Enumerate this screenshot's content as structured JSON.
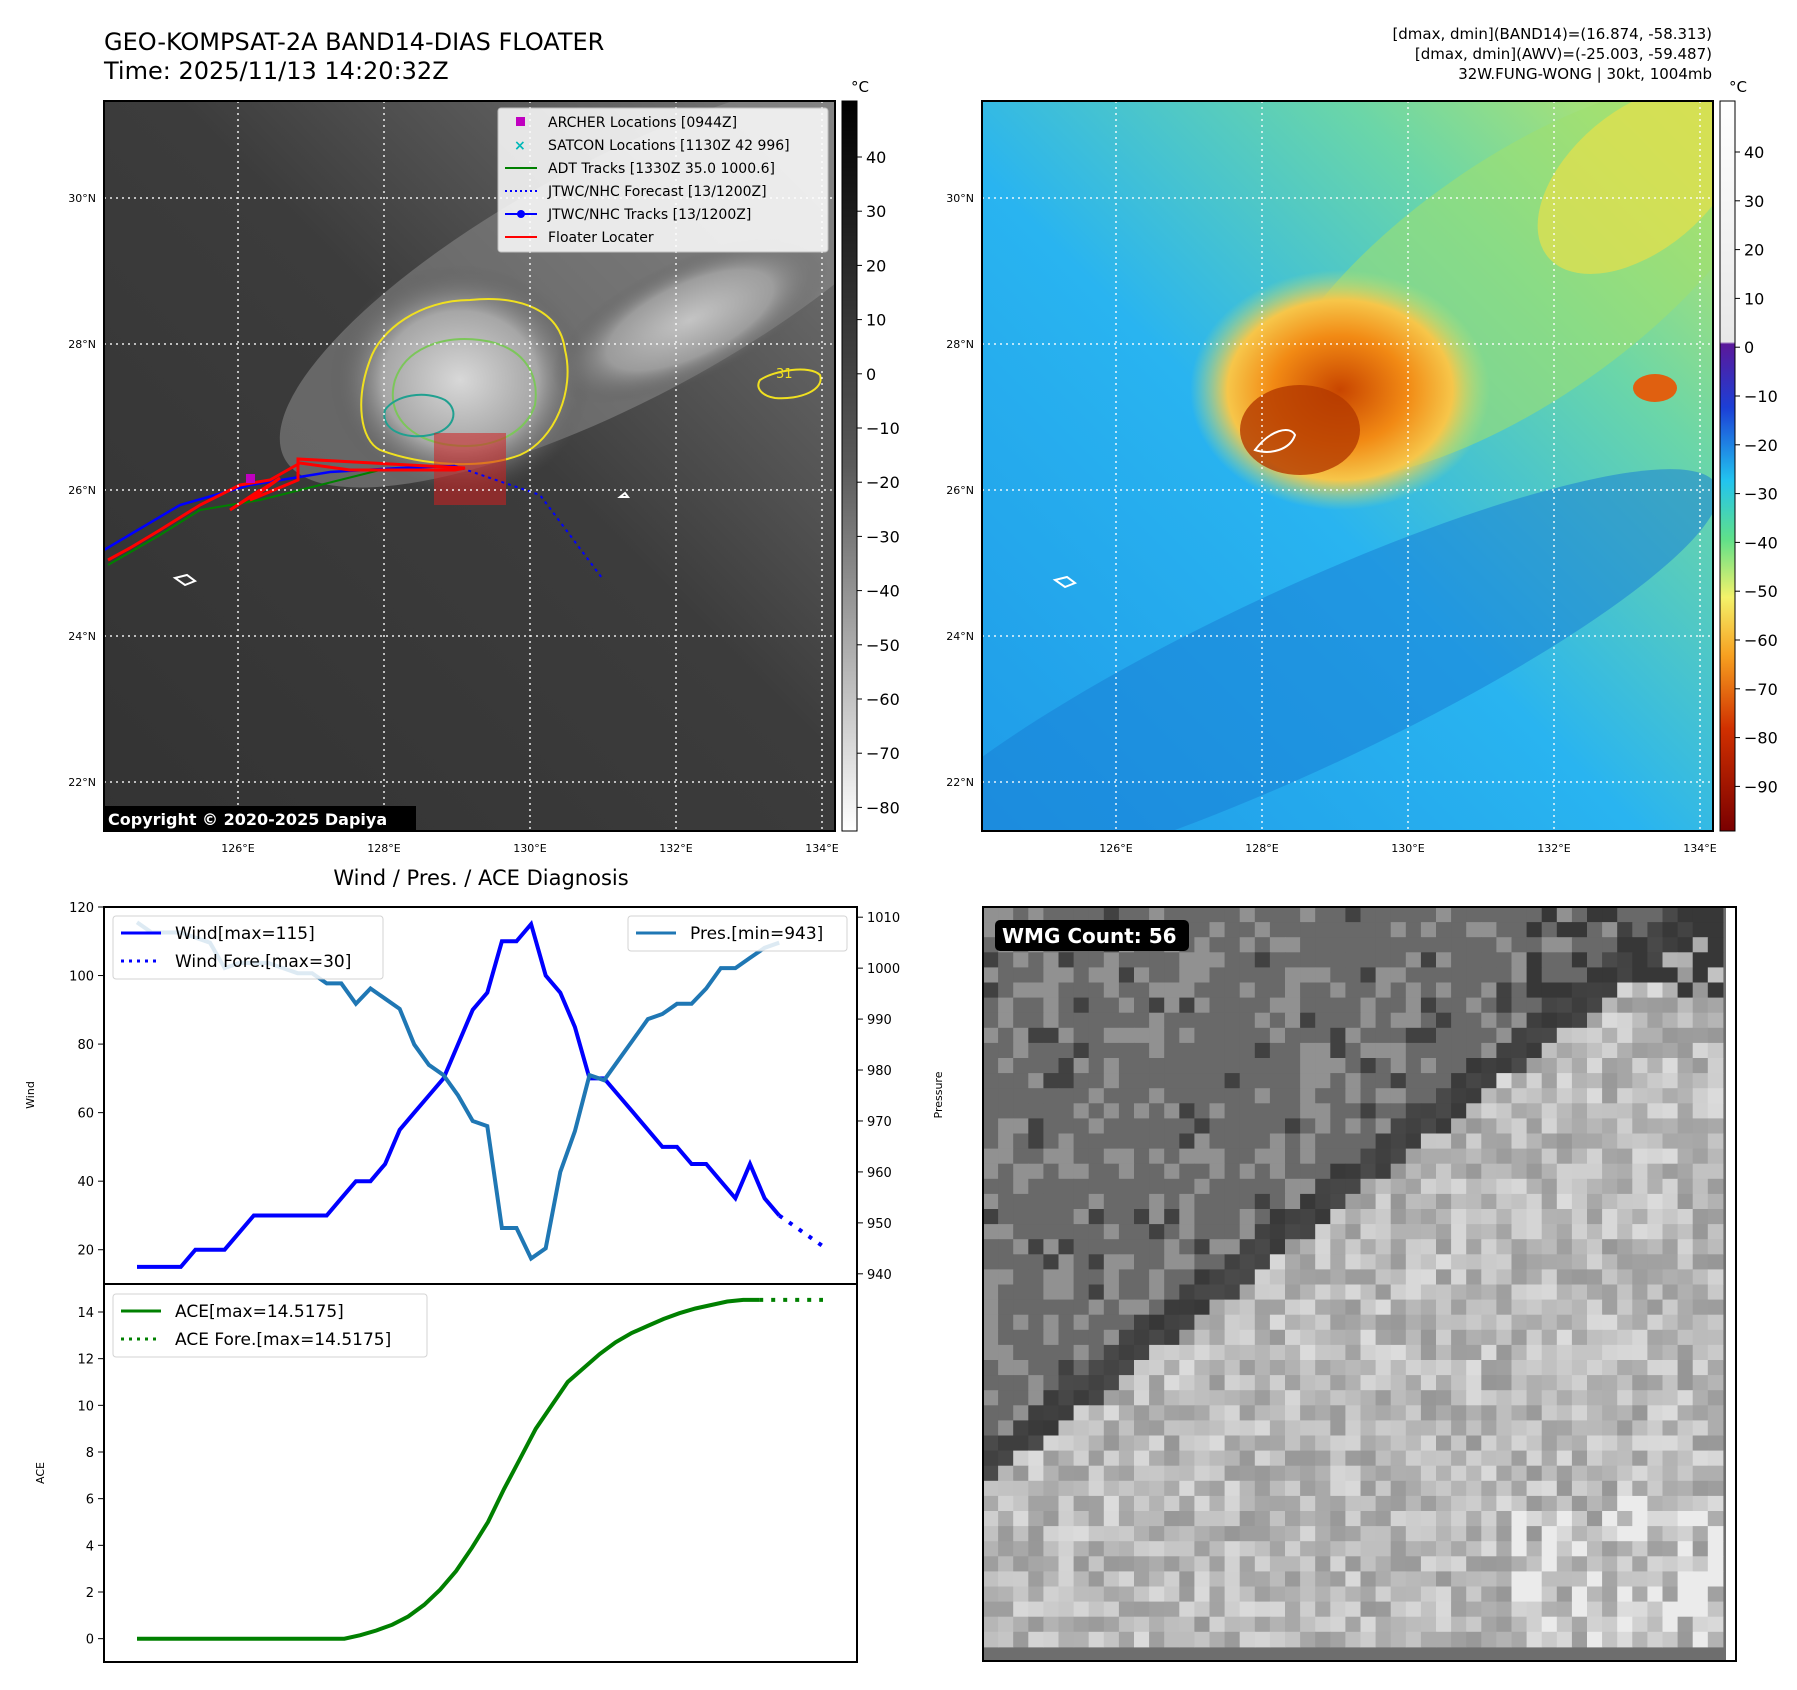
{
  "header": {
    "title_line1": "GEO-KOMPSAT-2A BAND14-DIAS FLOATER",
    "title_line2": "Time: 2025/11/13 14:20:32Z",
    "info_line1": "[dmax, dmin](BAND14)=(16.874, -58.313)",
    "info_line2": "[dmax, dmin](AWV)=(-25.003, -59.487)",
    "info_line3": "32W.FUNG-WONG | 30kt, 1004mb"
  },
  "maps": {
    "lat_labels": [
      "30°N",
      "28°N",
      "26°N",
      "24°N",
      "22°N"
    ],
    "lon_labels": [
      "126°E",
      "128°E",
      "130°E",
      "132°E",
      "134°E"
    ],
    "copyright": "Copyright © 2020-2025 Dapiya",
    "contour_label": "31",
    "colorbar_unit": "°C",
    "left_colorbar_ticks": [
      "40",
      "30",
      "20",
      "10",
      "0",
      "−10",
      "−20",
      "−30",
      "−40",
      "−50",
      "−60",
      "−70",
      "−80"
    ],
    "right_colorbar_ticks": [
      "40",
      "30",
      "20",
      "10",
      "0",
      "−10",
      "−20",
      "−30",
      "−40",
      "−50",
      "−60",
      "−70",
      "−80",
      "−90"
    ],
    "legend": [
      {
        "label": "ARCHER Locations [0944Z]",
        "color": "#c000c0"
      },
      {
        "label": "SATCON Locations [1130Z 42 996]",
        "color": "#00b8b8"
      },
      {
        "label": "ADT Tracks [1330Z 35.0 1000.6]",
        "color": "#008000"
      },
      {
        "label": "JTWC/NHC Forecast [13/1200Z]",
        "color": "#0000ff"
      },
      {
        "label": "JTWC/NHC Tracks [13/1200Z]",
        "color": "#0000ff"
      },
      {
        "label": "Floater Locater",
        "color": "#ff0000"
      }
    ]
  },
  "wmg": {
    "label": "WMG Count: 56"
  },
  "chart_data": [
    {
      "type": "line",
      "title": "Wind / Pres. / ACE Diagnosis",
      "ylabel": "Wind",
      "ylabel_right": "Pressure",
      "ylim": [
        10,
        120
      ],
      "ylim_right": [
        938,
        1012
      ],
      "yticks": [
        20,
        40,
        60,
        80,
        100,
        120
      ],
      "yticks_right": [
        940,
        950,
        960,
        970,
        980,
        990,
        1000,
        1010
      ],
      "series": [
        {
          "name": "Wind[max=115]",
          "color": "#0000ff",
          "axis": "left",
          "values": [
            15,
            15,
            15,
            15,
            20,
            20,
            20,
            25,
            30,
            30,
            30,
            30,
            30,
            30,
            35,
            40,
            40,
            45,
            55,
            60,
            65,
            70,
            80,
            90,
            95,
            110,
            110,
            115,
            100,
            95,
            85,
            70,
            70,
            65,
            60,
            55,
            50,
            50,
            45,
            45,
            40,
            35,
            45,
            35,
            30
          ]
        },
        {
          "name": "Wind Fore.[max=30]",
          "color": "#0000ff",
          "axis": "left",
          "dashed": true,
          "offset": 44,
          "values": [
            30,
            27,
            24,
            21
          ]
        },
        {
          "name": "Pres.[min=943]",
          "color": "#1f77b4",
          "axis": "right",
          "values": [
            1009,
            1007,
            1007,
            1007,
            1006,
            1005,
            1000,
            1001,
            1001,
            1001,
            1000,
            999,
            999,
            997,
            997,
            993,
            996,
            994,
            992,
            985,
            981,
            979,
            975,
            970,
            969,
            949,
            949,
            943,
            945,
            960,
            968,
            979,
            978,
            982,
            986,
            990,
            991,
            993,
            993,
            996,
            1000,
            1000,
            1002,
            1004,
            1005
          ]
        }
      ]
    },
    {
      "type": "line",
      "ylabel": "ACE",
      "ylim": [
        -1,
        15.2
      ],
      "yticks": [
        0,
        2,
        4,
        6,
        8,
        10,
        12,
        14
      ],
      "series": [
        {
          "name": "ACE[max=14.5175]",
          "color": "#008000",
          "values": [
            0,
            0,
            0,
            0,
            0,
            0,
            0,
            0,
            0,
            0,
            0,
            0,
            0,
            0,
            0.15,
            0.35,
            0.6,
            0.95,
            1.45,
            2.1,
            2.9,
            3.9,
            5.0,
            6.4,
            7.7,
            9.0,
            10.0,
            11.0,
            11.6,
            12.2,
            12.7,
            13.1,
            13.4,
            13.7,
            13.95,
            14.15,
            14.3,
            14.45,
            14.5175,
            14.5175
          ]
        },
        {
          "name": "ACE Fore.[max=14.5175]",
          "color": "#008000",
          "dashed": true,
          "offset": 39,
          "values": [
            14.5175,
            14.5175,
            14.5175,
            14.5175,
            14.5175
          ]
        }
      ]
    }
  ]
}
